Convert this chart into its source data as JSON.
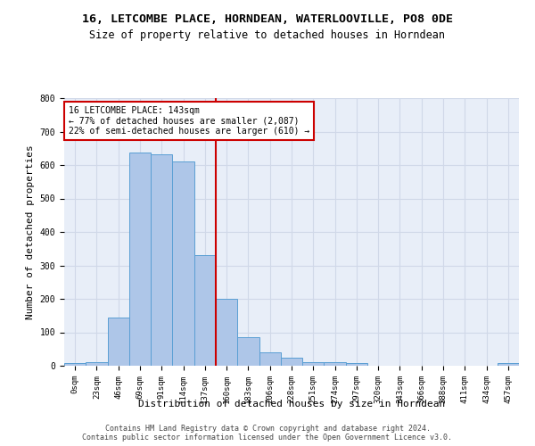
{
  "title": "16, LETCOMBE PLACE, HORNDEAN, WATERLOOVILLE, PO8 0DE",
  "subtitle": "Size of property relative to detached houses in Horndean",
  "xlabel": "Distribution of detached houses by size in Horndean",
  "ylabel": "Number of detached properties",
  "footer_line1": "Contains HM Land Registry data © Crown copyright and database right 2024.",
  "footer_line2": "Contains public sector information licensed under the Open Government Licence v3.0.",
  "bin_labels": [
    "0sqm",
    "23sqm",
    "46sqm",
    "69sqm",
    "91sqm",
    "114sqm",
    "137sqm",
    "160sqm",
    "183sqm",
    "206sqm",
    "228sqm",
    "251sqm",
    "274sqm",
    "297sqm",
    "320sqm",
    "343sqm",
    "366sqm",
    "388sqm",
    "411sqm",
    "434sqm",
    "457sqm"
  ],
  "bar_values": [
    7,
    10,
    143,
    637,
    632,
    610,
    330,
    200,
    85,
    40,
    25,
    11,
    12,
    9,
    0,
    0,
    0,
    0,
    0,
    0,
    7
  ],
  "bar_color": "#aec6e8",
  "bar_edge_color": "#5a9fd4",
  "vline_color": "#cc0000",
  "annotation_text": "16 LETCOMBE PLACE: 143sqm\n← 77% of detached houses are smaller (2,087)\n22% of semi-detached houses are larger (610) →",
  "annotation_box_color": "#cc0000",
  "ylim": [
    0,
    800
  ],
  "yticks": [
    0,
    100,
    200,
    300,
    400,
    500,
    600,
    700,
    800
  ],
  "grid_color": "#d0d8e8",
  "bg_color": "#e8eef8",
  "title_fontsize": 9.5,
  "subtitle_fontsize": 8.5,
  "ylabel_fontsize": 8,
  "xlabel_fontsize": 8,
  "tick_fontsize": 6.5,
  "annotation_fontsize": 7,
  "footer_fontsize": 6
}
